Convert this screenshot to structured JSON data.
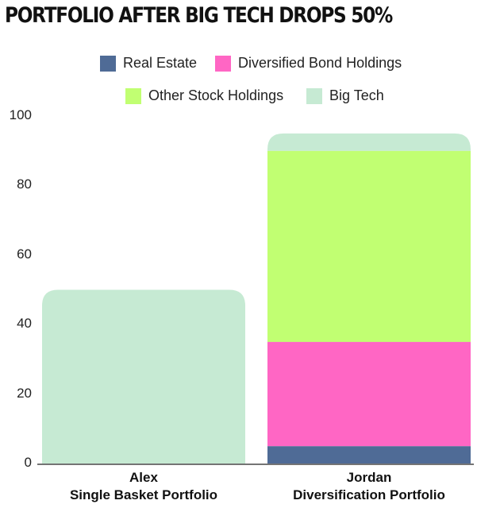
{
  "chart_data": {
    "type": "bar",
    "stacked": true,
    "title": "PORTFOLIO AFTER BIG TECH DROPS 50%",
    "categories": [
      {
        "name": "Alex",
        "subtitle": "Single Basket Portfolio"
      },
      {
        "name": "Jordan",
        "subtitle": "Diversification Portfolio"
      }
    ],
    "series": [
      {
        "name": "Real Estate",
        "color": "#4f6b96",
        "values": [
          0,
          5
        ]
      },
      {
        "name": "Diversified Bond Holdings",
        "color": "#ff66c4",
        "values": [
          0,
          30
        ]
      },
      {
        "name": "Other Stock Holdings",
        "color": "#c1ff72",
        "values": [
          0,
          55
        ]
      },
      {
        "name": "Big Tech",
        "color": "#c6ead3",
        "values": [
          50,
          5
        ]
      }
    ],
    "ylim": [
      0,
      100
    ],
    "yticks": [
      0,
      20,
      40,
      60,
      80,
      100
    ],
    "xlabel": "",
    "ylabel": "",
    "legend": "top"
  }
}
